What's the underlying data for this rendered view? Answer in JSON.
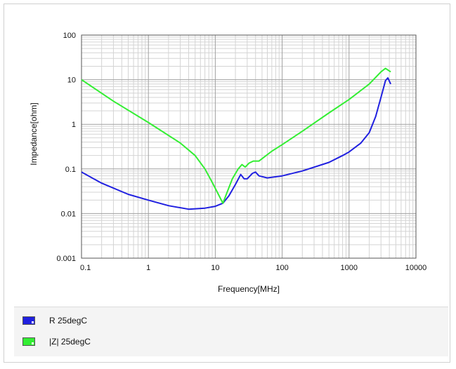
{
  "chart_data": {
    "type": "line",
    "xlabel": "Frequency[MHz]",
    "ylabel": "Impedance[ohm]",
    "x_scale": "log",
    "y_scale": "log",
    "xlim": [
      0.1,
      10000
    ],
    "ylim": [
      0.001,
      100
    ],
    "x_ticks": [
      "0.1",
      "1",
      "10",
      "100",
      "1000",
      "10000"
    ],
    "y_ticks": [
      "0.001",
      "0.01",
      "0.1",
      "1",
      "10",
      "100"
    ],
    "grid": true,
    "legend_position": "bottom",
    "series": [
      {
        "name": "R 25degC",
        "color": "#2020e0",
        "points": [
          [
            0.1,
            0.085
          ],
          [
            0.2,
            0.048
          ],
          [
            0.5,
            0.027
          ],
          [
            1,
            0.02
          ],
          [
            2,
            0.015
          ],
          [
            4,
            0.0125
          ],
          [
            7,
            0.0132
          ],
          [
            10,
            0.0145
          ],
          [
            13,
            0.017
          ],
          [
            16,
            0.025
          ],
          [
            20,
            0.045
          ],
          [
            24,
            0.075
          ],
          [
            27,
            0.06
          ],
          [
            30,
            0.06
          ],
          [
            36,
            0.08
          ],
          [
            40,
            0.085
          ],
          [
            45,
            0.07
          ],
          [
            60,
            0.063
          ],
          [
            100,
            0.07
          ],
          [
            200,
            0.09
          ],
          [
            500,
            0.14
          ],
          [
            800,
            0.2
          ],
          [
            1000,
            0.24
          ],
          [
            1500,
            0.38
          ],
          [
            2000,
            0.65
          ],
          [
            2500,
            1.5
          ],
          [
            3000,
            4.0
          ],
          [
            3500,
            9.5
          ],
          [
            3800,
            11
          ],
          [
            4200,
            8
          ]
        ]
      },
      {
        "name": "|Z| 25degC",
        "color": "#33ee33",
        "points": [
          [
            0.1,
            10
          ],
          [
            0.3,
            3.3
          ],
          [
            1,
            1.1
          ],
          [
            3,
            0.38
          ],
          [
            5,
            0.2
          ],
          [
            7,
            0.1
          ],
          [
            9,
            0.05
          ],
          [
            11,
            0.028
          ],
          [
            13,
            0.017
          ],
          [
            15,
            0.03
          ],
          [
            18,
            0.06
          ],
          [
            22,
            0.1
          ],
          [
            25,
            0.125
          ],
          [
            28,
            0.11
          ],
          [
            32,
            0.135
          ],
          [
            37,
            0.15
          ],
          [
            45,
            0.15
          ],
          [
            70,
            0.25
          ],
          [
            100,
            0.35
          ],
          [
            200,
            0.7
          ],
          [
            500,
            1.8
          ],
          [
            1000,
            3.6
          ],
          [
            2000,
            8
          ],
          [
            3000,
            15
          ],
          [
            3500,
            18
          ],
          [
            4200,
            15
          ]
        ]
      }
    ]
  }
}
